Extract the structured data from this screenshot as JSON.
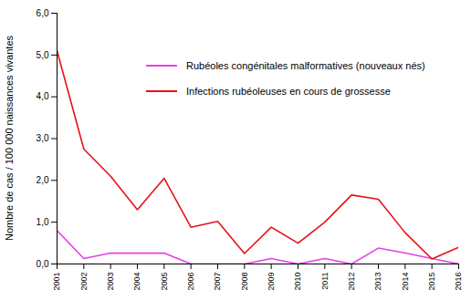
{
  "chart_data": {
    "type": "line",
    "y_label": "Nombre de cas / 100 000 naissances vivantes",
    "x": [
      2001,
      2002,
      2003,
      2004,
      2005,
      2006,
      2007,
      2008,
      2009,
      2010,
      2011,
      2012,
      2013,
      2014,
      2015,
      2016
    ],
    "series": [
      {
        "name": "Rubéoles congénitales malformatives (nouveaux nés)",
        "color": "#e83ee8",
        "values": [
          0.8,
          0.13,
          0.26,
          0.26,
          0.26,
          0,
          0,
          0,
          0.13,
          0,
          0.13,
          0,
          0.38,
          0.26,
          0.13,
          0
        ]
      },
      {
        "name": "Infections rubéoleuses en cours de grossesse",
        "color": "#e8101a",
        "values": [
          5.1,
          2.75,
          2.1,
          1.3,
          2.05,
          0.88,
          1.02,
          0.25,
          0.88,
          0.5,
          1.0,
          1.65,
          1.55,
          0.75,
          0.12,
          0.4
        ]
      }
    ],
    "xlim": [
      2001,
      2016
    ],
    "xticks": [
      2001,
      2002,
      2003,
      2004,
      2005,
      2006,
      2007,
      2008,
      2009,
      2010,
      2011,
      2012,
      2013,
      2014,
      2015,
      2016
    ],
    "ylim": [
      0,
      6
    ],
    "yticks": [
      {
        "value": 0,
        "label": "0,0"
      },
      {
        "value": 1,
        "label": "1,0"
      },
      {
        "value": 2,
        "label": "2,0"
      },
      {
        "value": 3,
        "label": "3,0"
      },
      {
        "value": 4,
        "label": "4,0"
      },
      {
        "value": 5,
        "label": "5,0"
      },
      {
        "value": 6,
        "label": "6,0"
      }
    ],
    "legend": "top"
  }
}
